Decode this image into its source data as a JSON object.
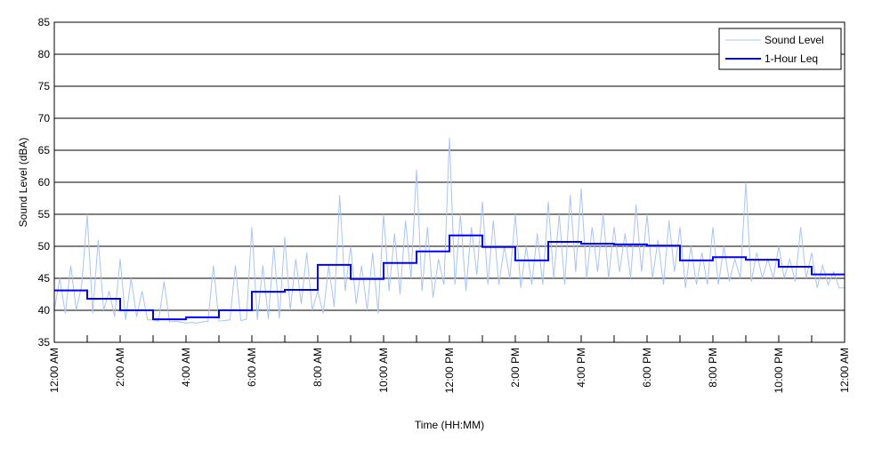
{
  "chart_data": {
    "type": "line",
    "title": "",
    "xlabel": "Time (HH:MM)",
    "ylabel": "Sound Level (dBA)",
    "ylim": [
      35,
      85
    ],
    "yticks": [
      35,
      40,
      45,
      50,
      55,
      60,
      65,
      70,
      75,
      80,
      85
    ],
    "xlim_hours": [
      0,
      24
    ],
    "xtick_labels": [
      "12:00 AM",
      "2:00 AM",
      "4:00 AM",
      "6:00 AM",
      "8:00 AM",
      "10:00 AM",
      "12:00 PM",
      "2:00 PM",
      "4:00 PM",
      "6:00 PM",
      "8:00 PM",
      "10:00 PM",
      "12:00 AM"
    ],
    "grid": "horizontal",
    "legend_position": "top-right",
    "series": [
      {
        "name": "Sound Level",
        "color": "#a8c4f8",
        "interval_minutes": 10,
        "values": [
          40,
          45,
          39.5,
          47,
          40,
          44,
          55,
          39.5,
          51,
          40,
          43,
          39,
          48,
          38.5,
          45,
          39,
          43,
          38.5,
          38.5,
          38.3,
          44.5,
          38.2,
          38.3,
          38.2,
          38,
          38.1,
          38,
          38.2,
          38.3,
          47,
          38.3,
          38.4,
          38.5,
          47,
          38.4,
          38.6,
          53,
          38.5,
          47,
          38.6,
          50,
          38.7,
          51.5,
          40,
          48,
          41,
          49,
          40,
          43,
          39.5,
          47,
          40.5,
          58,
          43,
          50,
          41,
          47,
          40,
          49,
          39.5,
          55,
          43,
          52,
          42.5,
          54,
          45,
          62,
          43,
          53,
          42,
          48,
          44,
          67,
          44,
          55,
          43,
          53,
          45.5,
          57,
          44,
          54,
          44,
          50,
          45,
          55,
          43.5,
          50,
          44,
          52,
          44,
          57,
          45,
          55,
          44,
          58,
          46,
          59,
          45,
          53,
          46,
          55,
          45,
          53,
          46,
          52,
          45,
          56.5,
          46,
          55,
          45,
          51,
          44,
          54,
          46,
          53,
          43.5,
          50,
          44,
          49,
          44,
          53,
          44,
          50,
          44.5,
          48,
          45,
          60,
          44.5,
          49,
          45,
          48,
          45,
          50,
          45,
          48,
          44.5,
          53,
          45,
          49,
          43.5,
          47,
          44,
          46,
          43.5
        ]
      },
      {
        "name": "1-Hour Leq",
        "color": "#0000ff",
        "interval_minutes": 60,
        "values": [
          43.1,
          41.8,
          40.0,
          38.6,
          38.9,
          40.0,
          42.9,
          43.2,
          47.1,
          44.9,
          47.4,
          49.2,
          51.7,
          49.9,
          47.8,
          50.7,
          50.4,
          50.3,
          50.1,
          47.8,
          48.3,
          47.9,
          46.8,
          45.6
        ]
      }
    ]
  }
}
